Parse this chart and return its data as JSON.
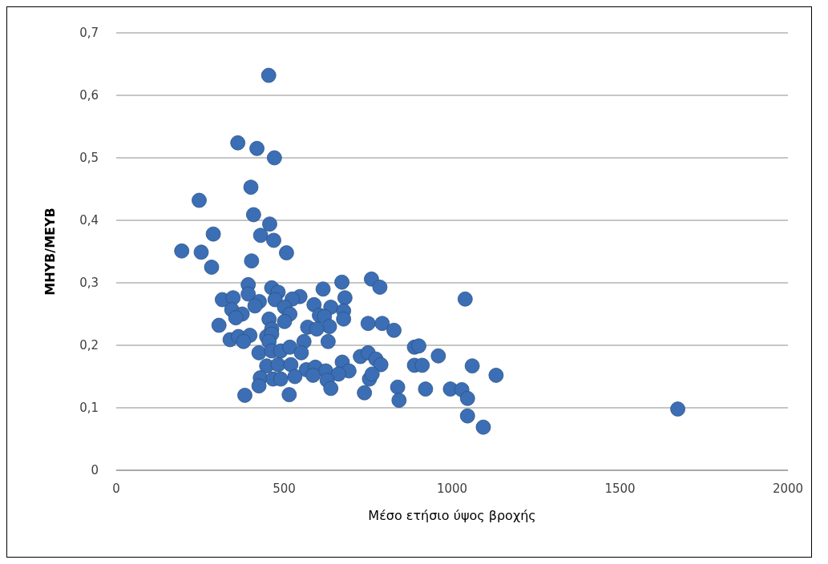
{
  "chart_data": {
    "type": "scatter",
    "xlabel": "Μέσο ετήσιο ύψος βροχής",
    "ylabel": "ΜΗΥΒ/ΜΕΥΒ",
    "color": "#3b6eb4",
    "marker": "circle",
    "grid": "y",
    "xlim": [
      0,
      2000
    ],
    "xticks": [
      0,
      500,
      1000,
      1500,
      2000
    ],
    "ylim": [
      0,
      0.7
    ],
    "yticks": [
      0,
      {
        "value": 0.1,
        "label": "0,1"
      },
      {
        "value": 0.2,
        "label": "0,2"
      },
      {
        "value": 0.3,
        "label": "0,3"
      },
      {
        "value": 0.4,
        "label": "0,4"
      },
      {
        "value": 0.5,
        "label": "0,5"
      },
      {
        "value": 0.6,
        "label": "0,6"
      },
      {
        "value": 0.7,
        "label": "0,7"
      }
    ],
    "x": [
      454,
      362,
      419,
      471,
      401,
      247,
      409,
      457,
      289,
      430,
      469,
      195,
      253,
      507,
      403,
      284,
      672,
      760,
      785,
      616,
      393,
      463,
      316,
      348,
      393,
      482,
      547,
      681,
      473,
      426,
      524,
      589,
      639,
      413,
      344,
      375,
      501,
      677,
      517,
      605,
      455,
      620,
      677,
      356,
      501,
      635,
      750,
      792,
      827,
      570,
      597,
      306,
      463,
      339,
      364,
      398,
      448,
      463,
      379,
      455,
      559,
      631,
      425,
      463,
      490,
      517,
      551,
      727,
      750,
      773,
      788,
      888,
      901,
      959,
      888,
      911,
      673,
      693,
      448,
      482,
      520,
      566,
      593,
      624,
      662,
      532,
      586,
      429,
      467,
      490,
      628,
      754,
      425,
      639,
      762,
      739,
      838,
      842,
      921,
      995,
      383,
      515,
      1039,
      1060,
      1131,
      1029,
      1046,
      1046,
      1093,
      1672
    ],
    "values": [
      0.632,
      0.524,
      0.515,
      0.5,
      0.453,
      0.432,
      0.409,
      0.394,
      0.378,
      0.376,
      0.368,
      0.351,
      0.349,
      0.348,
      0.335,
      0.325,
      0.301,
      0.306,
      0.293,
      0.29,
      0.297,
      0.292,
      0.273,
      0.276,
      0.282,
      0.285,
      0.278,
      0.276,
      0.273,
      0.27,
      0.274,
      0.265,
      0.261,
      0.263,
      0.257,
      0.25,
      0.261,
      0.255,
      0.25,
      0.248,
      0.242,
      0.246,
      0.242,
      0.244,
      0.238,
      0.23,
      0.235,
      0.235,
      0.224,
      0.229,
      0.226,
      0.232,
      0.226,
      0.209,
      0.214,
      0.216,
      0.214,
      0.218,
      0.206,
      0.206,
      0.206,
      0.206,
      0.188,
      0.191,
      0.191,
      0.197,
      0.188,
      0.182,
      0.188,
      0.178,
      0.169,
      0.197,
      0.199,
      0.183,
      0.168,
      0.168,
      0.173,
      0.159,
      0.167,
      0.169,
      0.169,
      0.161,
      0.165,
      0.159,
      0.154,
      0.15,
      0.152,
      0.148,
      0.146,
      0.146,
      0.144,
      0.146,
      0.135,
      0.131,
      0.154,
      0.124,
      0.133,
      0.112,
      0.13,
      0.13,
      0.12,
      0.121,
      0.274,
      0.167,
      0.152,
      0.129,
      0.115,
      0.087,
      0.069,
      0.098
    ]
  }
}
